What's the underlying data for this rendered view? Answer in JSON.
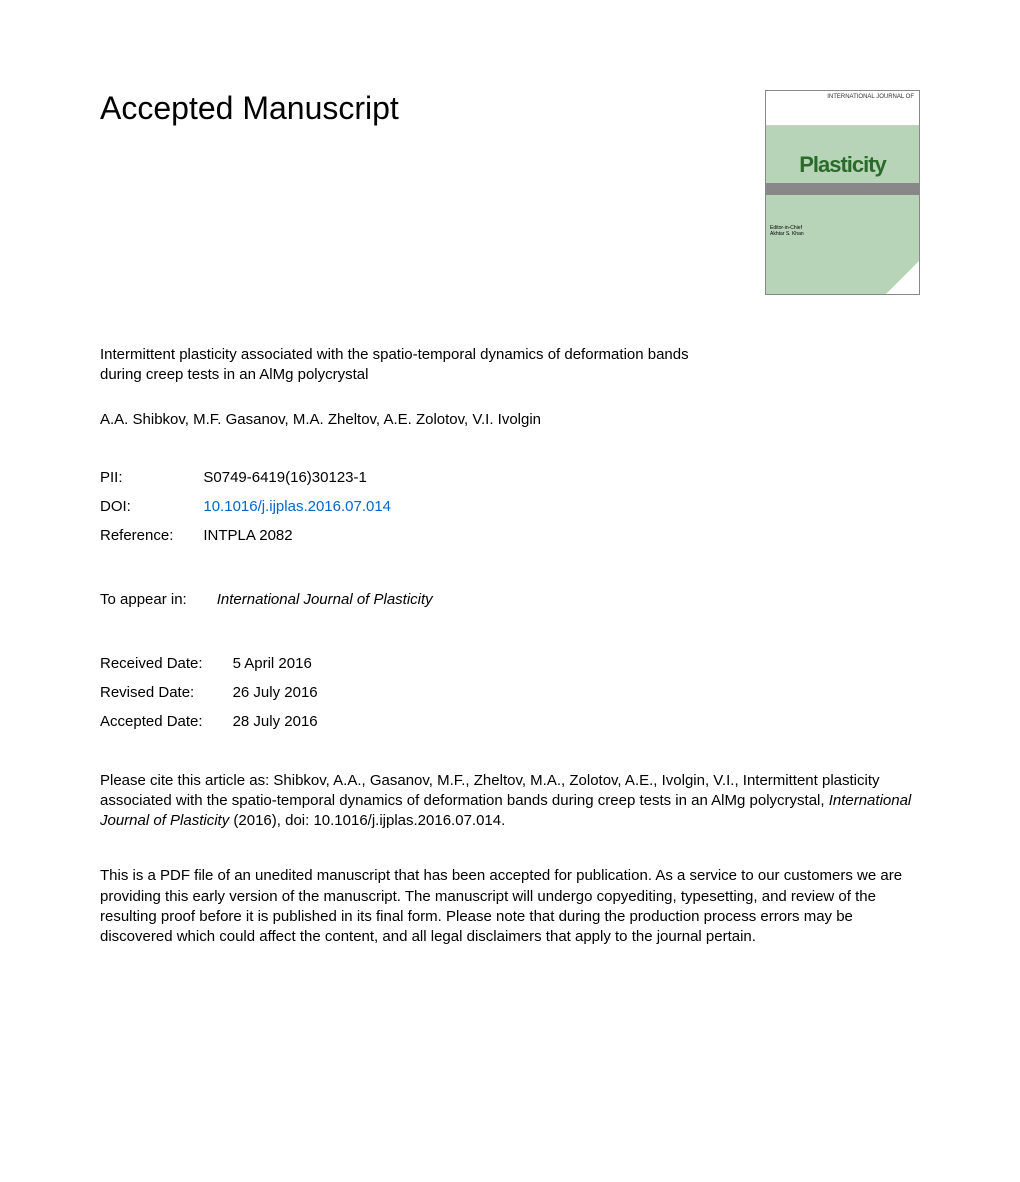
{
  "page": {
    "title": "Accepted Manuscript",
    "article_title": "Intermittent plasticity associated with the spatio-temporal dynamics of deformation bands during creep tests in an AlMg polycrystal",
    "authors": "A.A. Shibkov, M.F. Gasanov, M.A. Zheltov, A.E. Zolotov, V.I. Ivolgin"
  },
  "cover": {
    "journal_header": "INTERNATIONAL JOURNAL OF",
    "journal_name": "Plasticity",
    "editor_label": "Editor-in-Chief",
    "editor_name": "Akhtar S. Khan"
  },
  "meta": {
    "pii_label": "PII:",
    "pii_value": "S0749-6419(16)30123-1",
    "doi_label": "DOI:",
    "doi_value": "10.1016/j.ijplas.2016.07.014",
    "ref_label": "Reference:",
    "ref_value": "INTPLA 2082",
    "appear_label": "To appear in:",
    "appear_value": "International Journal of Plasticity",
    "received_label": "Received Date:",
    "received_value": "5 April 2016",
    "revised_label": "Revised Date:",
    "revised_value": "26 July 2016",
    "accepted_label": "Accepted Date:",
    "accepted_value": "28 July 2016"
  },
  "citation": {
    "prefix": "Please cite this article as: Shibkov, A.A., Gasanov, M.F., Zheltov, M.A., Zolotov, A.E., Ivolgin, V.I., Intermittent plasticity associated with the spatio-temporal dynamics of deformation bands during creep tests in an AlMg polycrystal, ",
    "journal": "International Journal of Plasticity",
    "suffix": " (2016), doi: 10.1016/j.ijplas.2016.07.014."
  },
  "disclaimer": "This is a PDF file of an unedited manuscript that has been accepted for publication. As a service to our customers we are providing this early version of the manuscript. The manuscript will undergo copyediting, typesetting, and review of the resulting proof before it is published in its final form. Please note that during the production process errors may be discovered which could affect the content, and all legal disclaimers that apply to the journal pertain.",
  "colors": {
    "link": "#0066cc",
    "text": "#000000",
    "cover_bg": "#b8d4b8",
    "cover_title": "#2a6b2a"
  },
  "typography": {
    "title_fontsize": 32,
    "body_fontsize": 15,
    "font_family": "Arial"
  }
}
